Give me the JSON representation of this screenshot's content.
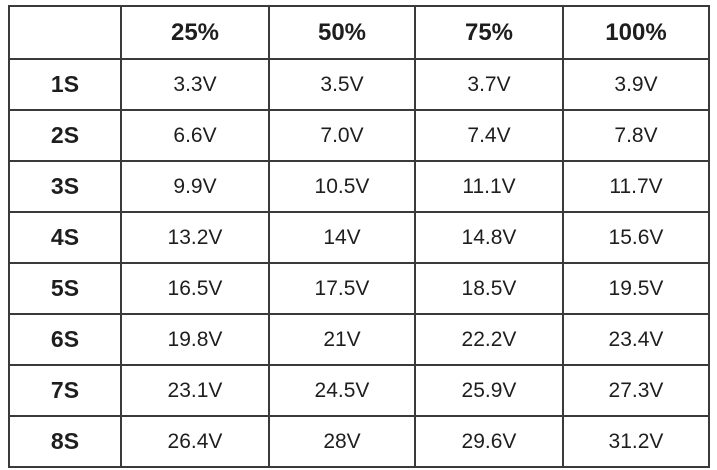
{
  "table": {
    "header": [
      "25%",
      "50%",
      "75%",
      "100%"
    ],
    "rows": [
      [
        "1S",
        "3.3V",
        "3.5V",
        "3.7V",
        "3.9V"
      ],
      [
        "2S",
        "6.6V",
        "7.0V",
        "7.4V",
        "7.8V"
      ],
      [
        "3S",
        "9.9V",
        "10.5V",
        "11.1V",
        "11.7V"
      ],
      [
        "4S",
        "13.2V",
        "14V",
        "14.8V",
        "15.6V"
      ],
      [
        "5S",
        "16.5V",
        "17.5V",
        "18.5V",
        "19.5V"
      ],
      [
        "6S",
        "19.8V",
        "21V",
        "22.2V",
        "23.4V"
      ],
      [
        "7S",
        "23.1V",
        "24.5V",
        "25.9V",
        "27.3V"
      ],
      [
        "8S",
        "26.4V",
        "28V",
        "29.6V",
        "31.2V"
      ]
    ]
  }
}
